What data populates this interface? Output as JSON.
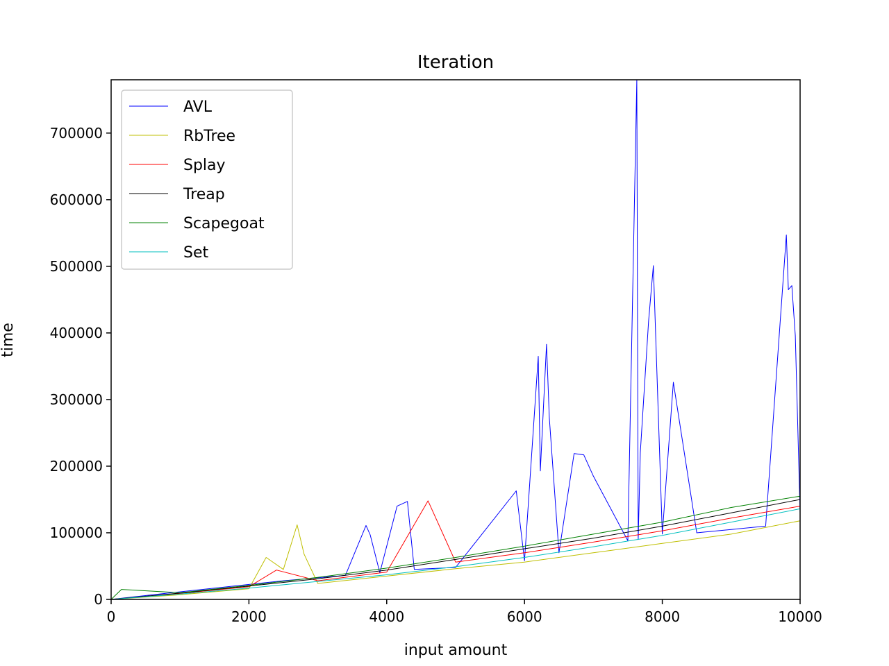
{
  "chart_data": {
    "type": "line",
    "title": "Iteration",
    "xlabel": "input amount",
    "ylabel": "time",
    "xlim": [
      0,
      10000
    ],
    "ylim": [
      0,
      780000
    ],
    "xticks": [
      0,
      2000,
      4000,
      6000,
      8000,
      10000
    ],
    "yticks": [
      0,
      100000,
      200000,
      300000,
      400000,
      500000,
      600000,
      700000
    ],
    "xtick_labels": [
      "0",
      "2000",
      "4000",
      "6000",
      "8000",
      "10000"
    ],
    "ytick_labels": [
      "0",
      "100000",
      "200000",
      "300000",
      "400000",
      "500000",
      "600000",
      "700000"
    ],
    "grid": false,
    "legend_position": "top-left",
    "series": [
      {
        "name": "AVL",
        "color": "#0000ff",
        "x": [
          0,
          700,
          1500,
          2500,
          3400,
          3700,
          3760,
          3900,
          4150,
          4300,
          4400,
          5000,
          5880,
          6000,
          6200,
          6230,
          6320,
          6360,
          6500,
          6720,
          6860,
          7000,
          7500,
          7630,
          7650,
          7680,
          7800,
          7870,
          8000,
          8160,
          8500,
          9000,
          9500,
          9800,
          9830,
          9880,
          9930,
          10000
        ],
        "y": [
          0,
          8000,
          17000,
          28000,
          36000,
          111000,
          97000,
          40000,
          140000,
          147000,
          45000,
          48000,
          163000,
          58000,
          365000,
          193000,
          383000,
          273000,
          70000,
          219000,
          217000,
          185000,
          88000,
          780000,
          90000,
          220000,
          417000,
          501000,
          98000,
          326000,
          100000,
          105000,
          110000,
          547000,
          465000,
          471000,
          396000,
          130000
        ]
      },
      {
        "name": "RbTree",
        "color": "#bfbf00",
        "x": [
          0,
          1000,
          2000,
          2250,
          2500,
          2700,
          2800,
          3000,
          4000,
          5000,
          6000,
          7000,
          8000,
          9000,
          10000
        ],
        "y": [
          0,
          7000,
          16000,
          63000,
          45000,
          112000,
          68000,
          24000,
          35000,
          46000,
          56000,
          70000,
          84000,
          98000,
          118000
        ]
      },
      {
        "name": "Splay",
        "color": "#ff0000",
        "x": [
          0,
          1000,
          2000,
          2400,
          3000,
          4000,
          4600,
          5000,
          6000,
          7000,
          8000,
          9000,
          10000
        ],
        "y": [
          0,
          9000,
          19000,
          44000,
          28000,
          41000,
          148000,
          56000,
          70000,
          86000,
          103000,
          122000,
          140000
        ]
      },
      {
        "name": "Treap",
        "color": "#000000",
        "x": [
          0,
          1000,
          2000,
          3000,
          4000,
          5000,
          6000,
          7000,
          8000,
          9000,
          10000
        ],
        "y": [
          0,
          9500,
          20000,
          31000,
          44000,
          60000,
          76000,
          92000,
          110000,
          130000,
          150000
        ]
      },
      {
        "name": "Scapegoat",
        "color": "#008000",
        "x": [
          0,
          150,
          1000,
          2000,
          3000,
          4000,
          5000,
          6000,
          7000,
          8000,
          9000,
          10000
        ],
        "y": [
          0,
          15000,
          10000,
          21000,
          33000,
          47000,
          63000,
          80000,
          98000,
          116000,
          138000,
          155000
        ]
      },
      {
        "name": "Set",
        "color": "#00bfbf",
        "x": [
          0,
          1000,
          2000,
          3000,
          4000,
          5000,
          6000,
          7000,
          8000,
          9000,
          10000
        ],
        "y": [
          0,
          8000,
          17000,
          27000,
          37000,
          49000,
          63000,
          79000,
          96000,
          116000,
          136000
        ]
      }
    ]
  }
}
